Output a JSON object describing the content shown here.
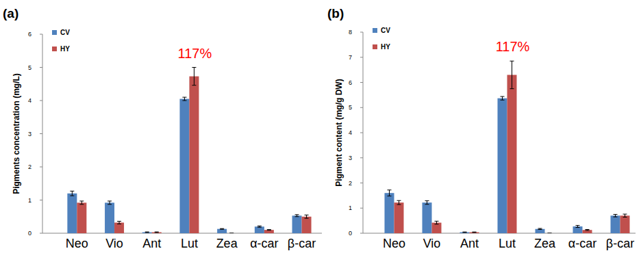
{
  "chart_data": [
    {
      "type": "bar",
      "title": "(a)",
      "y_label": "Pigments concentration (mg/L)",
      "categories": [
        "Neo",
        "Vio",
        "Ant",
        "Lut",
        "Zea",
        "α-car",
        "β-car"
      ],
      "series": [
        {
          "name": "CV",
          "color": "#4f81bd",
          "values": [
            1.2,
            0.92,
            0.03,
            4.05,
            0.13,
            0.2,
            0.53
          ],
          "errors": [
            0.07,
            0.05,
            0.01,
            0.05,
            0.01,
            0.02,
            0.03
          ]
        },
        {
          "name": "HY",
          "color": "#c0504d",
          "values": [
            0.92,
            0.32,
            0.03,
            4.73,
            0,
            0.1,
            0.5
          ],
          "errors": [
            0.05,
            0.04,
            0.01,
            0.27,
            0,
            0.01,
            0.05
          ]
        }
      ],
      "ylim": [
        0,
        6
      ],
      "yticks": [
        0,
        1,
        2,
        3,
        4,
        5,
        6
      ],
      "grid": false,
      "legend": "top-left",
      "annotation": {
        "text": "117%",
        "category": "Lut",
        "color": "#ff0000"
      }
    },
    {
      "type": "bar",
      "title": "(b)",
      "y_label": "Pigment content (mg/g DW)",
      "categories": [
        "Neo",
        "Vio",
        "Ant",
        "Lut",
        "Zea",
        "α-car",
        "β-car"
      ],
      "series": [
        {
          "name": "CV",
          "color": "#4f81bd",
          "values": [
            1.6,
            1.22,
            0.04,
            5.37,
            0.17,
            0.27,
            0.7
          ],
          "errors": [
            0.12,
            0.07,
            0.01,
            0.07,
            0.02,
            0.04,
            0.05
          ]
        },
        {
          "name": "HY",
          "color": "#c0504d",
          "values": [
            1.22,
            0.42,
            0.04,
            6.3,
            0,
            0.13,
            0.7
          ],
          "errors": [
            0.08,
            0.06,
            0.01,
            0.55,
            0,
            0.02,
            0.06
          ]
        }
      ],
      "ylim": [
        0,
        8
      ],
      "yticks": [
        0,
        1,
        2,
        3,
        4,
        5,
        6,
        7,
        8
      ],
      "grid": false,
      "legend": "top-left",
      "annotation": {
        "text": "117%",
        "category": "Lut",
        "color": "#ff0000"
      }
    }
  ]
}
